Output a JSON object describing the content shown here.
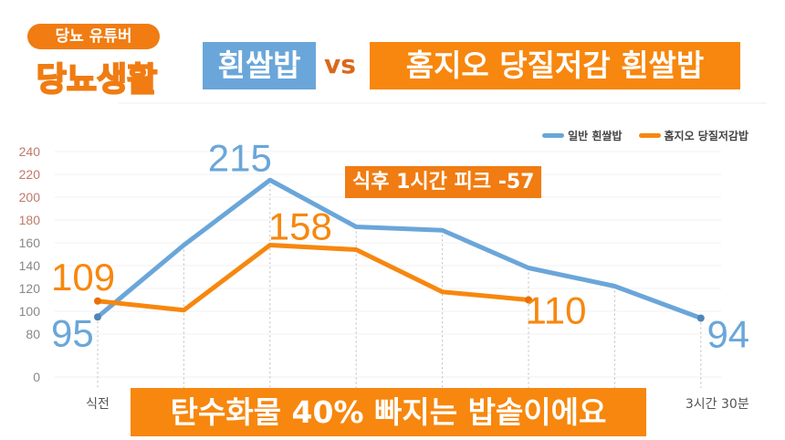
{
  "brand": {
    "pill": "당뇨 유튜버",
    "logo": "당뇨생활"
  },
  "title": {
    "left": "흰쌀밥",
    "vs": "vs",
    "right": "홈지오 당질저감 흰쌀밥"
  },
  "annotation": "식후 1시간 피크 -57",
  "banner": "탄수화물 40% 빠지는 밥솥이에요",
  "colors": {
    "blue": "#6aa6d9",
    "orange": "#f7870e"
  },
  "chart_data": {
    "type": "line",
    "title": "",
    "xlabel": "",
    "ylabel": "",
    "categories": [
      "식전",
      "",
      "",
      "",
      "",
      "",
      "",
      "3시간 30분"
    ],
    "yticks": [
      0,
      80,
      100,
      120,
      140,
      160,
      180,
      200,
      220,
      240
    ],
    "ylim": [
      0,
      240
    ],
    "grid": true,
    "legend": "top-right",
    "series": [
      {
        "name": "일반 흰쌀밥",
        "color": "#6aa6d9",
        "values": [
          95,
          158,
          215,
          174,
          171,
          138,
          122,
          94
        ]
      },
      {
        "name": "홈지오 당질저감밥",
        "color": "#f7870e",
        "values": [
          109,
          101,
          158,
          154,
          117,
          110,
          null,
          null
        ]
      }
    ],
    "data_labels": [
      {
        "series": 0,
        "index": 0,
        "text": "95"
      },
      {
        "series": 0,
        "index": 2,
        "text": "215"
      },
      {
        "series": 0,
        "index": 7,
        "text": "94"
      },
      {
        "series": 1,
        "index": 0,
        "text": "109"
      },
      {
        "series": 1,
        "index": 2,
        "text": "158"
      },
      {
        "series": 1,
        "index": 5,
        "text": "110"
      }
    ]
  }
}
